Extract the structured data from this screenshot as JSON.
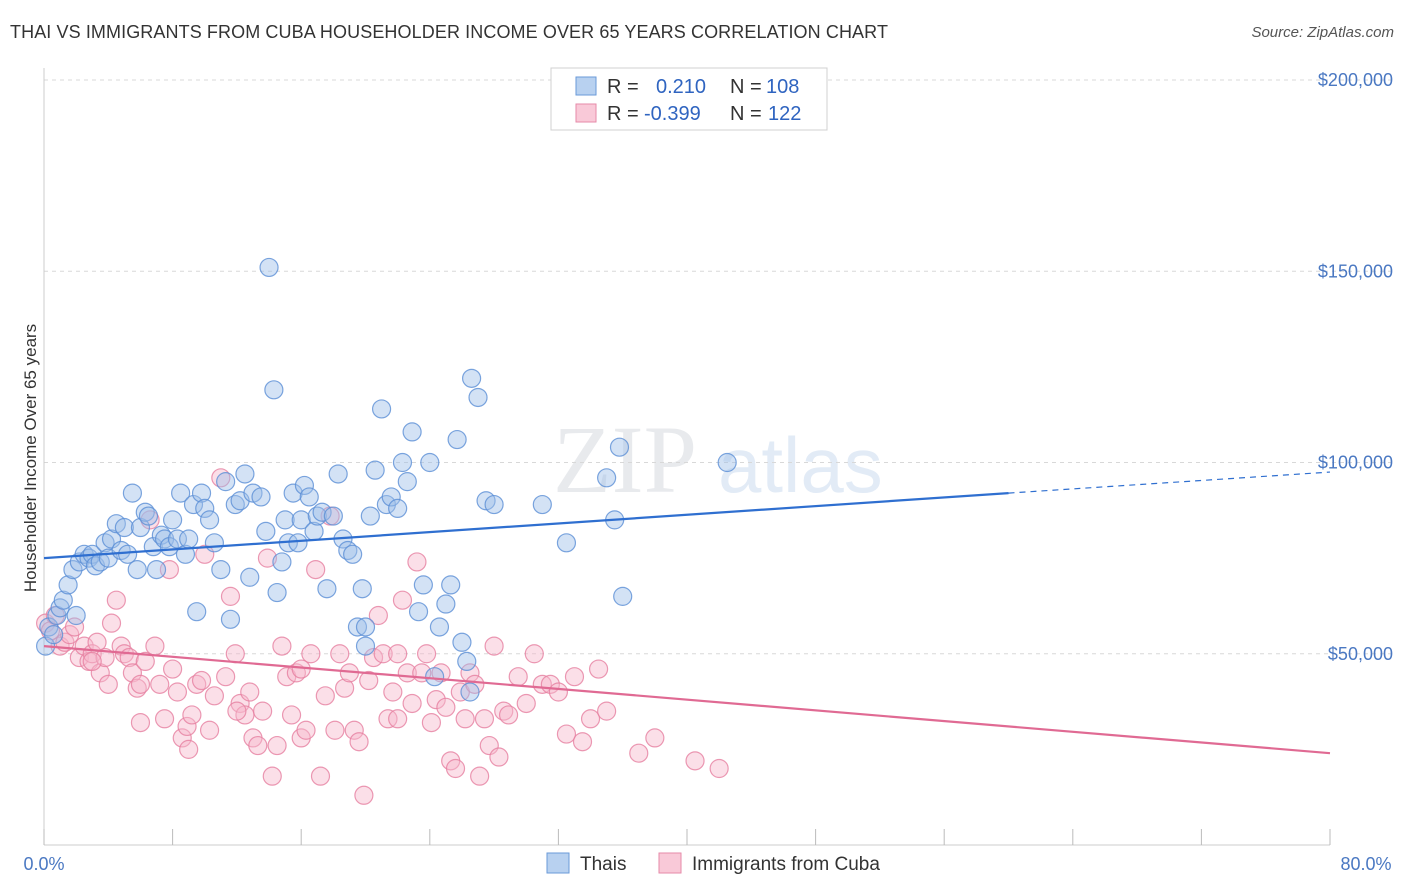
{
  "title": "THAI VS IMMIGRANTS FROM CUBA HOUSEHOLDER INCOME OVER 65 YEARS CORRELATION CHART",
  "source": "Source: ZipAtlas.com",
  "watermark": {
    "zip": "ZIP",
    "atlas": "atlas"
  },
  "colors": {
    "thai_fill": "#9dbfe8",
    "thai_stroke": "#5b8fd6",
    "thai_line": "#2f6fd0",
    "cuba_fill": "#f6b8cb",
    "cuba_stroke": "#e67fa0",
    "cuba_line": "#e06a93",
    "grid": "#d8d8d8",
    "tick_label": "#4a78c2"
  },
  "legend": {
    "rows": [
      {
        "r_label": "R =",
        "r_value": "0.210",
        "n_label": "N =",
        "n_value": "108"
      },
      {
        "r_label": "R =",
        "r_value": "-0.399",
        "n_label": "N =",
        "n_value": "122"
      }
    ]
  },
  "chart_data": {
    "type": "scatter",
    "title": "THAI VS IMMIGRANTS FROM CUBA HOUSEHOLDER INCOME OVER 65 YEARS CORRELATION CHART",
    "xlabel": "",
    "ylabel": "Householder Income Over 65 years",
    "xlim": [
      0,
      80
    ],
    "ylim": [
      0,
      200000
    ],
    "x_tick_labels": [
      "0.0%",
      "80.0%"
    ],
    "y_ticks": [
      50000,
      100000,
      150000,
      200000
    ],
    "y_tick_labels": [
      "$50,000",
      "$100,000",
      "$150,000",
      "$200,000"
    ],
    "grid": true,
    "legend_position": "top-center",
    "series": [
      {
        "name": "Thais",
        "r": 0.21,
        "n": 108,
        "trend": {
          "x0": 0,
          "y0": 75000,
          "x1": 60,
          "y1": 92000,
          "dash_to_x": 80,
          "dash_to_y": 97500
        },
        "points": [
          [
            0.1,
            52000
          ],
          [
            0.3,
            57000
          ],
          [
            0.6,
            55000
          ],
          [
            0.8,
            60000
          ],
          [
            1.0,
            62000
          ],
          [
            1.2,
            64000
          ],
          [
            1.5,
            68000
          ],
          [
            1.8,
            72000
          ],
          [
            2.0,
            60000
          ],
          [
            2.2,
            74000
          ],
          [
            2.5,
            76000
          ],
          [
            2.8,
            75000
          ],
          [
            3.0,
            76000
          ],
          [
            3.2,
            73000
          ],
          [
            3.5,
            74000
          ],
          [
            3.8,
            79000
          ],
          [
            4.0,
            75000
          ],
          [
            4.2,
            80000
          ],
          [
            4.5,
            84000
          ],
          [
            4.8,
            77000
          ],
          [
            5.0,
            83000
          ],
          [
            5.2,
            76000
          ],
          [
            5.5,
            92000
          ],
          [
            5.8,
            72000
          ],
          [
            6.0,
            83000
          ],
          [
            6.3,
            87000
          ],
          [
            6.5,
            86000
          ],
          [
            6.8,
            78000
          ],
          [
            7.0,
            72000
          ],
          [
            7.3,
            81000
          ],
          [
            7.5,
            80000
          ],
          [
            7.8,
            78000
          ],
          [
            8.0,
            85000
          ],
          [
            8.3,
            80000
          ],
          [
            8.5,
            92000
          ],
          [
            8.8,
            76000
          ],
          [
            9.0,
            80000
          ],
          [
            9.3,
            89000
          ],
          [
            9.5,
            61000
          ],
          [
            9.8,
            92000
          ],
          [
            10.0,
            88000
          ],
          [
            10.3,
            85000
          ],
          [
            10.6,
            79000
          ],
          [
            11.0,
            72000
          ],
          [
            11.3,
            95000
          ],
          [
            11.6,
            59000
          ],
          [
            11.9,
            89000
          ],
          [
            12.2,
            90000
          ],
          [
            12.5,
            97000
          ],
          [
            12.8,
            70000
          ],
          [
            13.0,
            92000
          ],
          [
            13.5,
            91000
          ],
          [
            13.8,
            82000
          ],
          [
            14.0,
            151000
          ],
          [
            14.3,
            119000
          ],
          [
            14.5,
            66000
          ],
          [
            14.8,
            74000
          ],
          [
            15.0,
            85000
          ],
          [
            15.2,
            79000
          ],
          [
            15.5,
            92000
          ],
          [
            15.8,
            79000
          ],
          [
            16.0,
            85000
          ],
          [
            16.2,
            94000
          ],
          [
            16.5,
            91000
          ],
          [
            16.8,
            82000
          ],
          [
            17.0,
            86000
          ],
          [
            17.3,
            87000
          ],
          [
            17.6,
            67000
          ],
          [
            18.0,
            86000
          ],
          [
            18.3,
            97000
          ],
          [
            18.6,
            80000
          ],
          [
            18.9,
            77000
          ],
          [
            19.2,
            76000
          ],
          [
            19.5,
            57000
          ],
          [
            19.8,
            67000
          ],
          [
            20.0,
            57000
          ],
          [
            20.3,
            86000
          ],
          [
            20.6,
            98000
          ],
          [
            21.0,
            114000
          ],
          [
            21.3,
            89000
          ],
          [
            21.6,
            91000
          ],
          [
            22.0,
            88000
          ],
          [
            22.3,
            100000
          ],
          [
            22.6,
            95000
          ],
          [
            22.9,
            108000
          ],
          [
            23.3,
            61000
          ],
          [
            23.6,
            68000
          ],
          [
            24.0,
            100000
          ],
          [
            24.3,
            44000
          ],
          [
            24.6,
            57000
          ],
          [
            25.0,
            63000
          ],
          [
            25.3,
            68000
          ],
          [
            25.7,
            106000
          ],
          [
            26.0,
            53000
          ],
          [
            26.3,
            48000
          ],
          [
            26.6,
            122000
          ],
          [
            27.0,
            117000
          ],
          [
            27.5,
            90000
          ],
          [
            28.0,
            89000
          ],
          [
            31.0,
            89000
          ],
          [
            32.5,
            79000
          ],
          [
            35.0,
            96000
          ],
          [
            35.5,
            85000
          ],
          [
            35.8,
            104000
          ],
          [
            36.0,
            65000
          ],
          [
            42.5,
            100000
          ],
          [
            26.5,
            40000
          ],
          [
            20.0,
            52000
          ]
        ]
      },
      {
        "name": "Immigrants from Cuba",
        "r": -0.399,
        "n": 122,
        "trend": {
          "x0": 0,
          "y0": 52000,
          "x1": 80,
          "y1": 24000
        },
        "points": [
          [
            0.1,
            58000
          ],
          [
            0.4,
            56000
          ],
          [
            0.7,
            60000
          ],
          [
            1.0,
            52000
          ],
          [
            1.3,
            53000
          ],
          [
            1.6,
            55000
          ],
          [
            1.9,
            57000
          ],
          [
            2.2,
            49000
          ],
          [
            2.5,
            52000
          ],
          [
            2.8,
            48000
          ],
          [
            3.0,
            50000
          ],
          [
            3.3,
            53000
          ],
          [
            3.5,
            45000
          ],
          [
            3.8,
            49000
          ],
          [
            4.0,
            42000
          ],
          [
            4.2,
            58000
          ],
          [
            4.5,
            64000
          ],
          [
            4.8,
            52000
          ],
          [
            5.0,
            50000
          ],
          [
            5.3,
            49000
          ],
          [
            5.5,
            45000
          ],
          [
            5.8,
            41000
          ],
          [
            6.0,
            42000
          ],
          [
            6.3,
            48000
          ],
          [
            6.6,
            85000
          ],
          [
            6.9,
            52000
          ],
          [
            7.2,
            42000
          ],
          [
            7.5,
            33000
          ],
          [
            7.8,
            72000
          ],
          [
            8.0,
            46000
          ],
          [
            8.3,
            40000
          ],
          [
            8.6,
            28000
          ],
          [
            8.9,
            31000
          ],
          [
            9.2,
            34000
          ],
          [
            9.5,
            42000
          ],
          [
            9.8,
            43000
          ],
          [
            10.0,
            76000
          ],
          [
            10.3,
            30000
          ],
          [
            10.6,
            39000
          ],
          [
            11.0,
            96000
          ],
          [
            11.3,
            44000
          ],
          [
            11.6,
            65000
          ],
          [
            11.9,
            50000
          ],
          [
            12.2,
            37000
          ],
          [
            12.5,
            34000
          ],
          [
            12.8,
            40000
          ],
          [
            13.0,
            28000
          ],
          [
            13.3,
            26000
          ],
          [
            13.6,
            35000
          ],
          [
            13.9,
            75000
          ],
          [
            14.2,
            18000
          ],
          [
            14.5,
            26000
          ],
          [
            14.8,
            52000
          ],
          [
            15.1,
            44000
          ],
          [
            15.4,
            34000
          ],
          [
            15.7,
            45000
          ],
          [
            16.0,
            28000
          ],
          [
            16.3,
            30000
          ],
          [
            16.6,
            50000
          ],
          [
            16.9,
            72000
          ],
          [
            17.2,
            18000
          ],
          [
            17.5,
            39000
          ],
          [
            17.8,
            86000
          ],
          [
            18.1,
            30000
          ],
          [
            18.4,
            50000
          ],
          [
            18.7,
            41000
          ],
          [
            19.0,
            45000
          ],
          [
            19.3,
            30000
          ],
          [
            19.6,
            27000
          ],
          [
            19.9,
            13000
          ],
          [
            20.2,
            43000
          ],
          [
            20.5,
            49000
          ],
          [
            20.8,
            60000
          ],
          [
            21.1,
            50000
          ],
          [
            21.4,
            33000
          ],
          [
            21.7,
            40000
          ],
          [
            22.0,
            50000
          ],
          [
            22.3,
            64000
          ],
          [
            22.6,
            45000
          ],
          [
            22.9,
            37000
          ],
          [
            23.2,
            74000
          ],
          [
            23.5,
            45000
          ],
          [
            23.8,
            50000
          ],
          [
            24.1,
            32000
          ],
          [
            24.4,
            38000
          ],
          [
            24.7,
            45000
          ],
          [
            25.0,
            36000
          ],
          [
            25.3,
            22000
          ],
          [
            25.6,
            20000
          ],
          [
            25.9,
            40000
          ],
          [
            26.2,
            33000
          ],
          [
            26.5,
            45000
          ],
          [
            26.8,
            42000
          ],
          [
            27.1,
            18000
          ],
          [
            27.4,
            33000
          ],
          [
            27.7,
            26000
          ],
          [
            28.0,
            52000
          ],
          [
            28.3,
            23000
          ],
          [
            28.6,
            35000
          ],
          [
            28.9,
            34000
          ],
          [
            29.5,
            44000
          ],
          [
            30.0,
            37000
          ],
          [
            30.5,
            50000
          ],
          [
            31.0,
            42000
          ],
          [
            31.5,
            42000
          ],
          [
            32.0,
            40000
          ],
          [
            32.5,
            29000
          ],
          [
            33.0,
            44000
          ],
          [
            33.5,
            27000
          ],
          [
            34.0,
            33000
          ],
          [
            34.5,
            46000
          ],
          [
            35.0,
            35000
          ],
          [
            37.0,
            24000
          ],
          [
            38.0,
            28000
          ],
          [
            40.5,
            22000
          ],
          [
            42.0,
            20000
          ],
          [
            22.0,
            33000
          ],
          [
            16.0,
            46000
          ],
          [
            12.0,
            35000
          ],
          [
            9.0,
            25000
          ],
          [
            6.0,
            32000
          ],
          [
            3.0,
            48000
          ]
        ]
      }
    ]
  },
  "bottom_legend": {
    "items": [
      {
        "label": "Thais"
      },
      {
        "label": "Immigrants from Cuba"
      }
    ]
  }
}
